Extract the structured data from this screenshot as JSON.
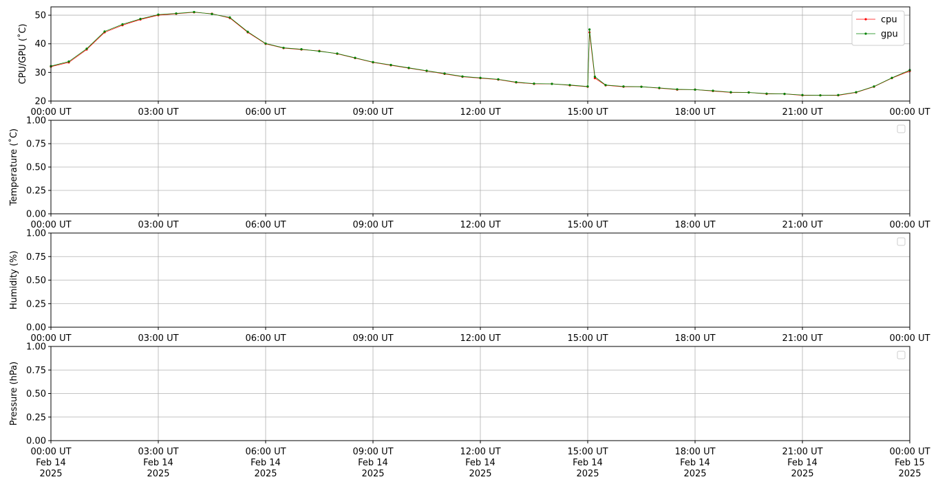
{
  "chart_data": [
    {
      "type": "line",
      "ylabel": "CPU/GPU (˚C)",
      "grid": true,
      "legend": "upper right",
      "x": [
        0,
        0.5,
        1,
        1.5,
        2,
        2.5,
        3,
        3.5,
        4,
        4.5,
        5,
        5.5,
        6,
        6.5,
        7,
        7.5,
        8,
        8.5,
        9,
        9.5,
        10,
        10.5,
        11,
        11.5,
        12,
        12.5,
        13,
        13.5,
        14,
        14.5,
        15,
        15.05,
        15.2,
        15.5,
        16,
        16.5,
        17,
        17.5,
        18,
        18.5,
        19,
        19.5,
        20,
        20.5,
        21,
        21.5,
        22,
        22.5,
        23,
        23.5,
        24
      ],
      "series": [
        {
          "name": "cpu",
          "color": "#ff0000",
          "values": [
            32,
            33.5,
            38,
            44,
            46.5,
            48.5,
            50,
            50.5,
            51,
            50.5,
            49,
            44,
            40,
            38.5,
            38,
            37.5,
            36.5,
            35,
            33.5,
            32.5,
            31.5,
            30.5,
            29.5,
            28.5,
            28,
            27.5,
            26.5,
            26,
            26,
            25.5,
            25,
            44,
            28,
            25.5,
            25,
            25,
            24.5,
            24,
            24,
            23.5,
            23,
            23,
            22.5,
            22.5,
            22,
            22,
            22,
            23,
            25,
            28,
            30.5
          ]
        },
        {
          "name": "gpu",
          "color": "#008000",
          "values": [
            32.2,
            33.8,
            38.3,
            44.3,
            46.8,
            48.7,
            50.2,
            50.6,
            51.1,
            50.4,
            49.2,
            44.2,
            40.1,
            38.6,
            38.1,
            37.4,
            36.6,
            35.1,
            33.6,
            32.6,
            31.6,
            30.6,
            29.6,
            28.6,
            28.1,
            27.6,
            26.6,
            26.1,
            26,
            25.6,
            25.1,
            45,
            28.5,
            25.6,
            25.1,
            25,
            24.6,
            24.1,
            24,
            23.6,
            23.1,
            23,
            22.6,
            22.5,
            22.1,
            22,
            22.1,
            23.1,
            25.1,
            28.1,
            30.8
          ]
        }
      ],
      "xlim": [
        0,
        24
      ],
      "ylim": [
        20,
        52.9
      ],
      "yticks": [
        20,
        30,
        40,
        50
      ],
      "xticks": [
        {
          "value": 0,
          "label": "00:00 UT"
        },
        {
          "value": 3,
          "label": "03:00 UT"
        },
        {
          "value": 6,
          "label": "06:00 UT"
        },
        {
          "value": 9,
          "label": "09:00 UT"
        },
        {
          "value": 12,
          "label": "12:00 UT"
        },
        {
          "value": 15,
          "label": "15:00 UT"
        },
        {
          "value": 18,
          "label": "18:00 UT"
        },
        {
          "value": 21,
          "label": "21:00 UT"
        },
        {
          "value": 24,
          "label": "00:00 UT"
        }
      ]
    },
    {
      "type": "line",
      "ylabel": "Temperature (˚C)",
      "grid": true,
      "series": [],
      "xlim": [
        0,
        24
      ],
      "ylim": [
        0,
        1
      ],
      "yticks": [
        {
          "value": 0,
          "label": "0.00"
        },
        {
          "value": 0.25,
          "label": "0.25"
        },
        {
          "value": 0.5,
          "label": "0.50"
        },
        {
          "value": 0.75,
          "label": "0.75"
        },
        {
          "value": 1,
          "label": "1.00"
        }
      ],
      "xticks": [
        {
          "value": 0,
          "label": "00:00 UT"
        },
        {
          "value": 3,
          "label": "03:00 UT"
        },
        {
          "value": 6,
          "label": "06:00 UT"
        },
        {
          "value": 9,
          "label": "09:00 UT"
        },
        {
          "value": 12,
          "label": "12:00 UT"
        },
        {
          "value": 15,
          "label": "15:00 UT"
        },
        {
          "value": 18,
          "label": "18:00 UT"
        },
        {
          "value": 21,
          "label": "21:00 UT"
        },
        {
          "value": 24,
          "label": "00:00 UT"
        }
      ]
    },
    {
      "type": "line",
      "ylabel": "Humidity (%)",
      "grid": true,
      "series": [],
      "xlim": [
        0,
        24
      ],
      "ylim": [
        0,
        1
      ],
      "yticks": [
        {
          "value": 0,
          "label": "0.00"
        },
        {
          "value": 0.25,
          "label": "0.25"
        },
        {
          "value": 0.5,
          "label": "0.50"
        },
        {
          "value": 0.75,
          "label": "0.75"
        },
        {
          "value": 1,
          "label": "1.00"
        }
      ],
      "xticks": [
        {
          "value": 0,
          "label": "00:00 UT"
        },
        {
          "value": 3,
          "label": "03:00 UT"
        },
        {
          "value": 6,
          "label": "06:00 UT"
        },
        {
          "value": 9,
          "label": "09:00 UT"
        },
        {
          "value": 12,
          "label": "12:00 UT"
        },
        {
          "value": 15,
          "label": "15:00 UT"
        },
        {
          "value": 18,
          "label": "18:00 UT"
        },
        {
          "value": 21,
          "label": "21:00 UT"
        },
        {
          "value": 24,
          "label": "00:00 UT"
        }
      ]
    },
    {
      "type": "line",
      "ylabel": "Pressure (hPa)",
      "grid": true,
      "series": [],
      "xlim": [
        0,
        24
      ],
      "ylim": [
        0,
        1
      ],
      "yticks": [
        {
          "value": 0,
          "label": "0.00"
        },
        {
          "value": 0.25,
          "label": "0.25"
        },
        {
          "value": 0.5,
          "label": "0.50"
        },
        {
          "value": 0.75,
          "label": "0.75"
        },
        {
          "value": 1,
          "label": "1.00"
        }
      ],
      "xticks": [
        {
          "value": 0,
          "label": "00:00 UT\nFeb 14\n2025"
        },
        {
          "value": 3,
          "label": "03:00 UT\nFeb 14\n2025"
        },
        {
          "value": 6,
          "label": "06:00 UT\nFeb 14\n2025"
        },
        {
          "value": 9,
          "label": "09:00 UT\nFeb 14\n2025"
        },
        {
          "value": 12,
          "label": "12:00 UT\nFeb 14\n2025"
        },
        {
          "value": 15,
          "label": "15:00 UT\nFeb 14\n2025"
        },
        {
          "value": 18,
          "label": "18:00 UT\nFeb 14\n2025"
        },
        {
          "value": 21,
          "label": "21:00 UT\nFeb 14\n2025"
        },
        {
          "value": 24,
          "label": "00:00 UT\nFeb 15\n2025"
        }
      ]
    }
  ]
}
